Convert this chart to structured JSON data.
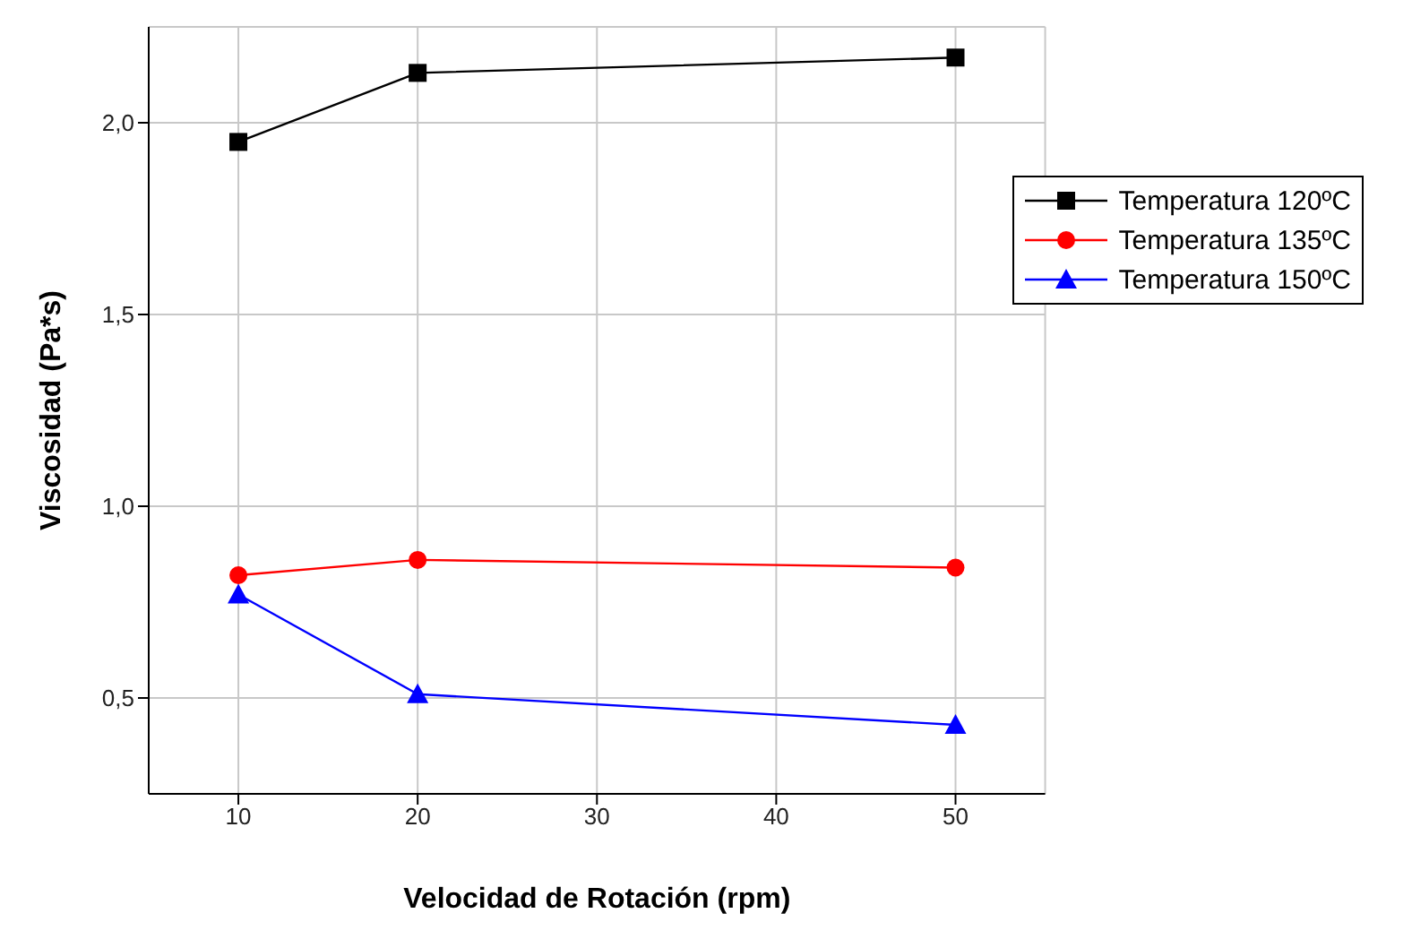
{
  "chart_data": {
    "type": "line",
    "xlabel": "Velocidad de Rotación (rpm)",
    "ylabel": "Viscosidad (Pa*s)",
    "x": [
      10,
      20,
      50
    ],
    "series": [
      {
        "name": "Temperatura 120ºC",
        "color": "#000000",
        "marker": "square",
        "values": [
          1.95,
          2.13,
          2.17
        ]
      },
      {
        "name": "Temperatura 135ºC",
        "color": "#ff0000",
        "marker": "circle",
        "values": [
          0.82,
          0.86,
          0.84
        ]
      },
      {
        "name": "Temperatura 150ºC",
        "color": "#0000ff",
        "marker": "triangle",
        "values": [
          0.77,
          0.51,
          0.43
        ]
      }
    ],
    "xlim": [
      5,
      55
    ],
    "xticks": [
      10,
      20,
      30,
      40,
      50
    ],
    "ylim": [
      0.25,
      2.25
    ],
    "yticks": [
      {
        "value": 0.5,
        "label": "0,5"
      },
      {
        "value": 1,
        "label": "1,0"
      },
      {
        "value": 1.5,
        "label": "1,5"
      },
      {
        "value": 2,
        "label": "2,0"
      }
    ],
    "grid": true,
    "legend": "top right",
    "line_style": "solid"
  }
}
